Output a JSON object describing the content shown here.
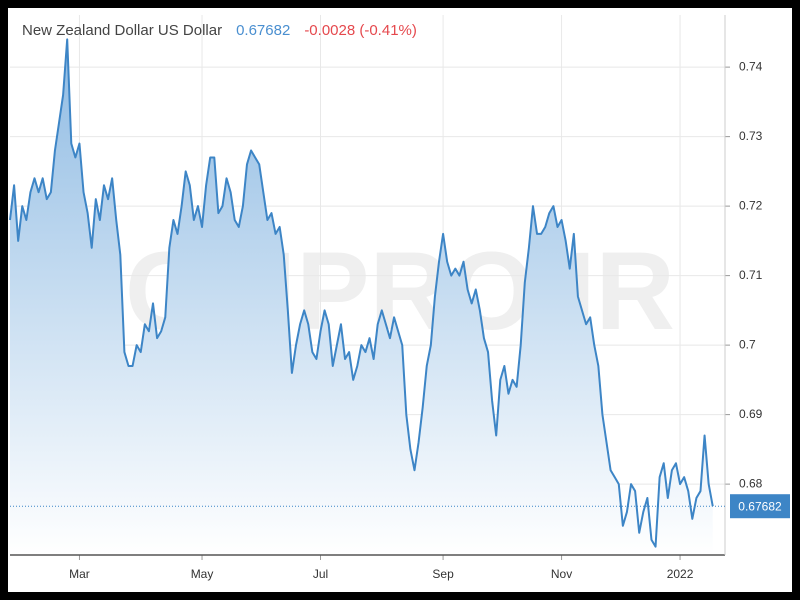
{
  "chart_data": {
    "type": "line",
    "title": "New Zealand Dollar US Dollar",
    "last_value": 0.67682,
    "change": "-0.0028 (-0.41%)",
    "watermark": "CMPRO.IR",
    "color": "#3d85c6",
    "grid": true,
    "xlim": [
      0,
      175
    ],
    "xticks": [
      {
        "value": 17,
        "label": "Mar"
      },
      {
        "value": 47,
        "label": "May"
      },
      {
        "value": 76,
        "label": "Jul"
      },
      {
        "value": 106,
        "label": "Sep"
      },
      {
        "value": 135,
        "label": "Nov"
      },
      {
        "value": 164,
        "label": "2022"
      }
    ],
    "ylim": [
      0.6698,
      0.7475
    ],
    "yticks": [
      0.68,
      0.69,
      0.7,
      0.71,
      0.72,
      0.73,
      0.74
    ],
    "values": [
      0.718,
      0.723,
      0.715,
      0.72,
      0.718,
      0.722,
      0.724,
      0.722,
      0.724,
      0.721,
      0.722,
      0.728,
      0.732,
      0.736,
      0.744,
      0.729,
      0.727,
      0.729,
      0.722,
      0.719,
      0.714,
      0.721,
      0.718,
      0.723,
      0.721,
      0.724,
      0.718,
      0.713,
      0.699,
      0.697,
      0.697,
      0.7,
      0.699,
      0.703,
      0.702,
      0.706,
      0.701,
      0.702,
      0.704,
      0.714,
      0.718,
      0.716,
      0.72,
      0.725,
      0.723,
      0.718,
      0.72,
      0.717,
      0.723,
      0.727,
      0.727,
      0.719,
      0.72,
      0.724,
      0.722,
      0.718,
      0.717,
      0.72,
      0.726,
      0.728,
      0.727,
      0.726,
      0.722,
      0.718,
      0.719,
      0.716,
      0.717,
      0.713,
      0.705,
      0.696,
      0.7,
      0.703,
      0.705,
      0.703,
      0.699,
      0.698,
      0.702,
      0.705,
      0.703,
      0.697,
      0.7,
      0.703,
      0.698,
      0.699,
      0.695,
      0.697,
      0.7,
      0.699,
      0.701,
      0.698,
      0.703,
      0.705,
      0.703,
      0.701,
      0.704,
      0.702,
      0.7,
      0.69,
      0.685,
      0.682,
      0.686,
      0.691,
      0.697,
      0.7,
      0.707,
      0.712,
      0.716,
      0.712,
      0.71,
      0.711,
      0.71,
      0.712,
      0.708,
      0.706,
      0.708,
      0.705,
      0.701,
      0.699,
      0.692,
      0.687,
      0.695,
      0.697,
      0.693,
      0.695,
      0.694,
      0.7,
      0.709,
      0.714,
      0.72,
      0.716,
      0.716,
      0.717,
      0.719,
      0.72,
      0.717,
      0.718,
      0.715,
      0.711,
      0.716,
      0.707,
      0.705,
      0.703,
      0.704,
      0.7,
      0.697,
      0.69,
      0.686,
      0.682,
      0.681,
      0.68,
      0.674,
      0.676,
      0.68,
      0.679,
      0.673,
      0.676,
      0.678,
      0.672,
      0.671,
      0.681,
      0.683,
      0.678,
      0.682,
      0.683,
      0.68,
      0.681,
      0.679,
      0.675,
      0.678,
      0.679,
      0.687,
      0.68,
      0.67682
    ]
  }
}
